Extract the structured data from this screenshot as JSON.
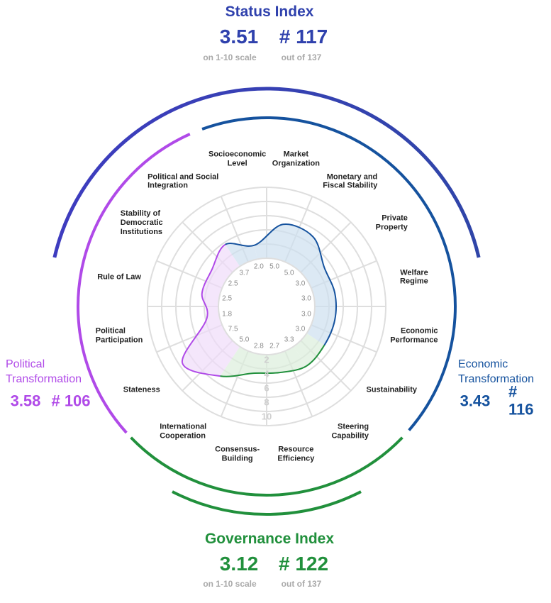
{
  "chart_data": {
    "type": "radar",
    "status_index": {
      "title": "Status Index",
      "score": 3.51,
      "rank": {
        "value": 117,
        "label": "# 117"
      },
      "score_note": "on 1-10 scale",
      "rank_note": "out of 137"
    },
    "categories": [
      "Socioeconomic\nLevel",
      "Market\nOrganization",
      "Monetary and\nFiscal Stability",
      "Private\nProperty",
      "Welfare\nRegime",
      "Economic\nPerformance",
      "Sustainability",
      "Steering\nCapability",
      "Resource\nEfficiency",
      "Consensus-\nBuilding",
      "International\nCooperation",
      "Stateness",
      "Political\nParticipation",
      "Rule of Law",
      "Stability of\nDemocratic\nInstitutions",
      "Political and Social\nIntegration"
    ],
    "series": [
      {
        "name": "Economic\nTransformation",
        "color": "#15529e",
        "fill": "#cddff0",
        "score": 3.43,
        "rank": {
          "value": 116,
          "label": "# 116"
        },
        "values": [
          2,
          5,
          5,
          3,
          3,
          3,
          3,
          null,
          null,
          null,
          null,
          null,
          null,
          null,
          null,
          null
        ],
        "value_labels": [
          "2.0",
          "5.0",
          "5.0",
          "3.0",
          "3.0",
          "3.0",
          "3.0",
          null,
          null,
          null,
          null,
          null,
          null,
          null,
          null,
          null
        ]
      },
      {
        "name": "Governance Index",
        "color": "#21903c",
        "fill": "#dbeedb",
        "score": 3.12,
        "rank": {
          "value": 122,
          "label": "# 122"
        },
        "score_note": "on 1-10 scale",
        "rank_note": "out of 137",
        "values": [
          null,
          null,
          null,
          null,
          null,
          null,
          null,
          3.3,
          2.7,
          2.8,
          5,
          null,
          null,
          null,
          null,
          null
        ],
        "value_labels": [
          null,
          null,
          null,
          null,
          null,
          null,
          null,
          "3.3",
          "2.7",
          "2.8",
          "5.0",
          null,
          null,
          null,
          null,
          null
        ]
      },
      {
        "name": "Political\nTransformation",
        "color": "#b04ae8",
        "fill": "#efdcfa",
        "score": 3.58,
        "rank": {
          "value": 106,
          "label": "# 106"
        },
        "values": [
          null,
          null,
          null,
          null,
          null,
          null,
          null,
          null,
          null,
          null,
          null,
          7.5,
          1.8,
          2.5,
          2.5,
          3.7
        ],
        "value_labels": [
          null,
          null,
          null,
          null,
          null,
          null,
          null,
          null,
          null,
          null,
          null,
          "7.5",
          "1.8",
          "2.5",
          "2.5",
          "3.7"
        ]
      }
    ],
    "rlim": [
      0,
      10
    ],
    "rticks": [
      2,
      4,
      6,
      8,
      10
    ],
    "grid": true
  }
}
